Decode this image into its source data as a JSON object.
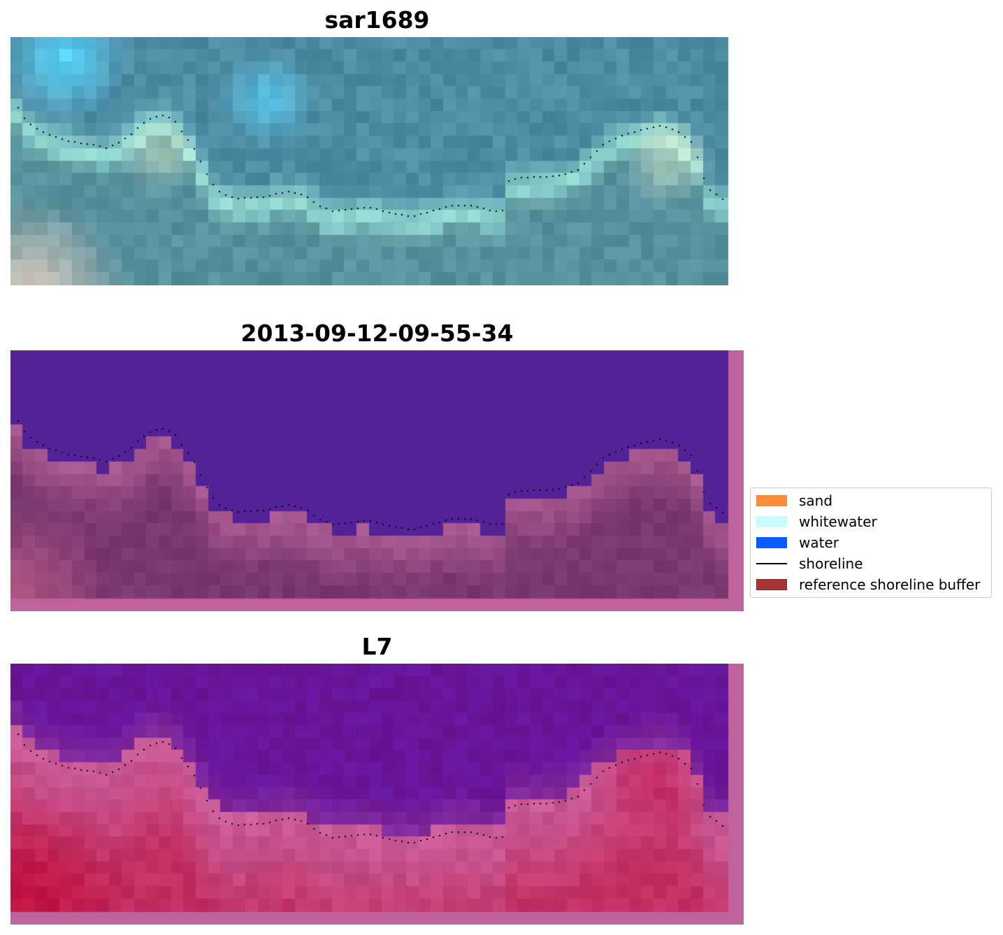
{
  "panels": [
    {
      "title": "sar1689",
      "style": "rgb"
    },
    {
      "title": "2013-09-12-09-55-34",
      "style": "classified"
    },
    {
      "title": "L7",
      "style": "index"
    }
  ],
  "legend": [
    {
      "label": "sand",
      "color": "#ff8c3a",
      "kind": "patch"
    },
    {
      "label": "whitewater",
      "color": "#c9fdfd",
      "kind": "patch"
    },
    {
      "label": "water",
      "color": "#0a5cff",
      "kind": "patch"
    },
    {
      "label": "shoreline",
      "color": "#000000",
      "kind": "line"
    },
    {
      "label": "reference shoreline buffer",
      "color": "#a52a2a",
      "kind": "patch"
    }
  ],
  "colors": {
    "deep_water": "#532297",
    "buffer_pink": "#c0629b",
    "land_mauve": "#7a3870",
    "index_purple": "#6e1a99",
    "index_red": "#c0123f",
    "rgb_teal": "#4f8ea4",
    "rgb_cyan": "#58d8ff"
  }
}
